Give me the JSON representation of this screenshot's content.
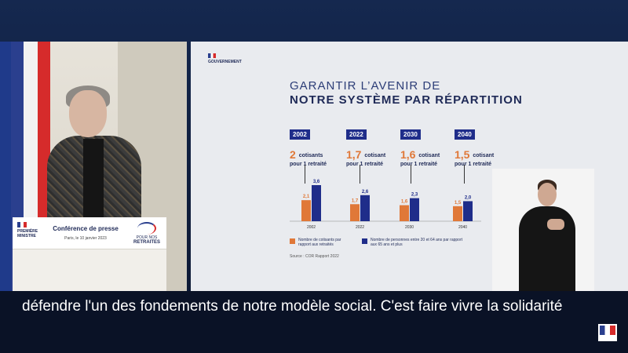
{
  "lectern": {
    "logo_line1": "PREMIÈRE",
    "logo_line2": "MINISTRE",
    "title": "Conférence de presse",
    "date": "Paris, le 10 janvier 2023",
    "campaign_small": "POUR NOS",
    "campaign_big": "RETRAITES"
  },
  "slide": {
    "gov_label": "GOUVERNEMENT",
    "title_line1": "GARANTIR L’AVENIR DE",
    "title_line2": "NOTRE SYSTÈME PAR RÉPARTITION",
    "groups": [
      {
        "year": "2002",
        "ratio": "2",
        "ratio_label": "cotisants",
        "ratio_sub": "pour 1 retraité"
      },
      {
        "year": "2022",
        "ratio": "1,7",
        "ratio_label": "cotisant",
        "ratio_sub": "pour 1 retraité"
      },
      {
        "year": "2030",
        "ratio": "1,6",
        "ratio_label": "cotisant",
        "ratio_sub": "pour 1 retraité"
      },
      {
        "year": "2040",
        "ratio": "1,5",
        "ratio_label": "cotisant",
        "ratio_sub": "pour 1 retraité"
      }
    ],
    "legend_orange": "Nombre de cotisants par rapport aux retraités",
    "legend_blue": "Nombre de personnes entre 20 et 64 ans par rapport aux 65 ans et plus",
    "source": "Source : COR Rapport 2022"
  },
  "chart_data": {
    "type": "bar",
    "categories": [
      "2002",
      "2022",
      "2030",
      "2040"
    ],
    "series": [
      {
        "name": "Nombre de cotisants par rapport aux retraités",
        "values": [
          2.1,
          1.7,
          1.6,
          1.5
        ],
        "labels": [
          "2,1",
          "1,7",
          "1,6",
          "1,5"
        ],
        "color": "#e07838"
      },
      {
        "name": "Nombre de personnes entre 20 et 64 ans par rapport aux 65 ans et plus",
        "values": [
          3.6,
          2.6,
          2.3,
          2.0
        ],
        "labels": [
          "3,6",
          "2,6",
          "2,3",
          "2,0"
        ],
        "color": "#1f2d8a"
      }
    ],
    "ylim": [
      0,
      3.6
    ]
  },
  "subtitle": {
    "text": "défendre l'un des fondements de notre modèle social. C'est faire vivre la solidarité"
  },
  "colors": {
    "navy": "#1f2a57",
    "accent_orange": "#e07838",
    "accent_blue": "#1f2d8a",
    "background": "#0f1e3d"
  }
}
